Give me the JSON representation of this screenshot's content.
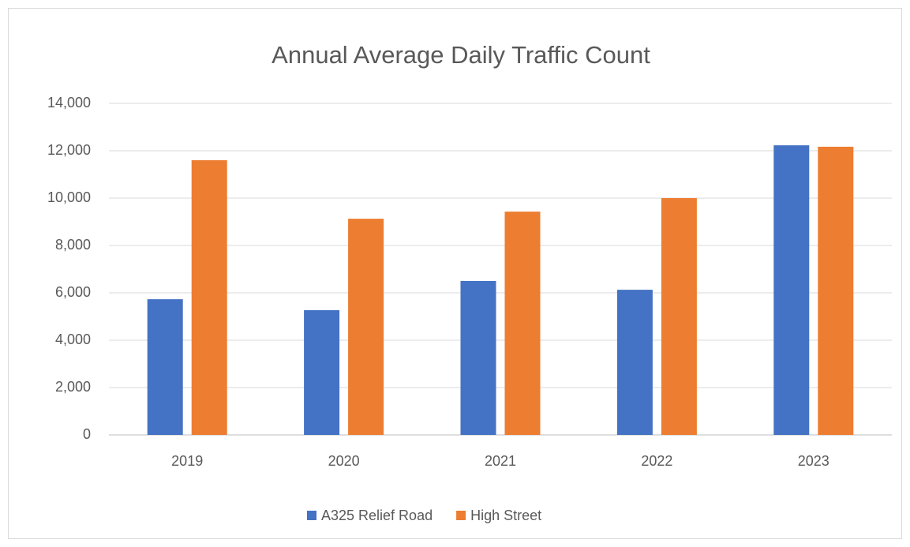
{
  "chart_data": {
    "type": "bar",
    "title": "Annual Average Daily Traffic Count",
    "categories": [
      "2019",
      "2020",
      "2021",
      "2022",
      "2023"
    ],
    "series": [
      {
        "name": "A325 Relief Road",
        "color": "#4472c4",
        "values": [
          5730,
          5270,
          6500,
          6130,
          12230
        ]
      },
      {
        "name": "High Street",
        "color": "#ed7d31",
        "values": [
          11600,
          9130,
          9430,
          10000,
          12170
        ]
      }
    ],
    "ylim": [
      0,
      14000
    ],
    "yticks": [
      0,
      {
        "value": 2000,
        "label": "2,000"
      },
      {
        "value": 4000,
        "label": "4,000"
      },
      {
        "value": 6000,
        "label": "6,000"
      },
      {
        "value": 8000,
        "label": "8,000"
      },
      {
        "value": 10000,
        "label": "10,000"
      },
      {
        "value": 12000,
        "label": "12,000"
      },
      {
        "value": 14000,
        "label": "14,000"
      }
    ],
    "grid": true,
    "legend": "bottom"
  }
}
